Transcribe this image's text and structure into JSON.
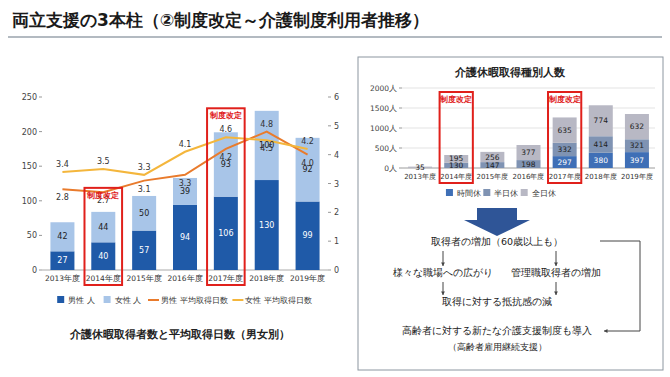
{
  "title": "両立支援の3本柱（②制度改定～介護制度利用者推移）",
  "chart_data": [
    {
      "type": "bar",
      "stacked": true,
      "title": "介護休暇取得者数と平均取得日数（男女別）",
      "categories": [
        "2013年度",
        "2014年度",
        "2015年度",
        "2016年度",
        "2017年度",
        "2018年度",
        "2019年度"
      ],
      "series": [
        {
          "name": "男性 人",
          "color": "#1f5aa8",
          "values": [
            27,
            40,
            57,
            94,
            106,
            130,
            99
          ]
        },
        {
          "name": "女性 人",
          "color": "#a8c5e8",
          "values": [
            42,
            44,
            50,
            39,
            93,
            100,
            92
          ]
        },
        {
          "name": "男性 平均取得日数",
          "type": "line",
          "axis": "y2",
          "color": "#e97b2c",
          "values": [
            2.8,
            2.7,
            3.1,
            3.3,
            4.2,
            4.8,
            4.0
          ],
          "value_labels": [
            "2.8",
            "2.7",
            "3.1",
            "3.3",
            "4.2",
            "4.8",
            "4.0"
          ]
        },
        {
          "name": "女性 平均取得日数",
          "type": "line",
          "axis": "y2",
          "color": "#f4b63c",
          "values": [
            3.4,
            3.5,
            3.3,
            4.1,
            4.6,
            4.5,
            4.2
          ],
          "value_labels": [
            "3.4",
            "3.5",
            "3.3",
            "4.1",
            "4.6",
            "4.5",
            "4.2"
          ]
        }
      ],
      "ylim": [
        0,
        250
      ],
      "yticks": [
        0,
        50,
        100,
        150,
        200,
        250
      ],
      "y2lim": [
        0,
        6
      ],
      "y2ticks": [
        0,
        1,
        2,
        3,
        4,
        5,
        6
      ],
      "grid": false,
      "data_labels": true,
      "legend": "bottom",
      "annotations": [
        {
          "text": "制度改定",
          "category": "2014年度"
        },
        {
          "text": "制度改定",
          "category": "2017年度"
        }
      ]
    },
    {
      "type": "bar",
      "stacked": true,
      "title": "介護休暇取得種別人数",
      "categories": [
        "2013年度",
        "2014年度",
        "2015年度",
        "2016年度",
        "2017年度",
        "2018年度",
        "2019年度"
      ],
      "series": [
        {
          "name": "時間休",
          "color": "#3f6fb6",
          "values": [
            null,
            null,
            null,
            null,
            297,
            380,
            397
          ]
        },
        {
          "name": "半日休",
          "color": "#7f93b3",
          "values": [
            null,
            130,
            147,
            198,
            332,
            414,
            321
          ]
        },
        {
          "name": "全日休",
          "color": "#b8b8c4",
          "values": [
            35,
            195,
            256,
            377,
            635,
            774,
            632
          ]
        }
      ],
      "ylim": [
        0,
        2000
      ],
      "yticks": [
        {
          "value": 0,
          "label": "0人"
        },
        {
          "value": 500,
          "label": "500人"
        },
        {
          "value": 1000,
          "label": "1000人"
        },
        {
          "value": 1500,
          "label": "1500人"
        },
        {
          "value": 2000,
          "label": "2000人"
        }
      ],
      "grid": true,
      "data_labels": true,
      "legend": "bottom",
      "annotations": [
        {
          "text": "制度改定",
          "category": "2014年度"
        },
        {
          "text": "制度改定",
          "category": "2017年度"
        }
      ]
    }
  ],
  "flow": {
    "step1": "取得者の増加（60歳以上も）",
    "branches": [
      "様々な職場への広がり",
      "管理職取得者の増加"
    ],
    "step3": "取得に対する抵抗感の減",
    "result": "高齢者に対する新たな介護支援制度も導入",
    "result_note": "（高齢者雇用継続支援）"
  }
}
